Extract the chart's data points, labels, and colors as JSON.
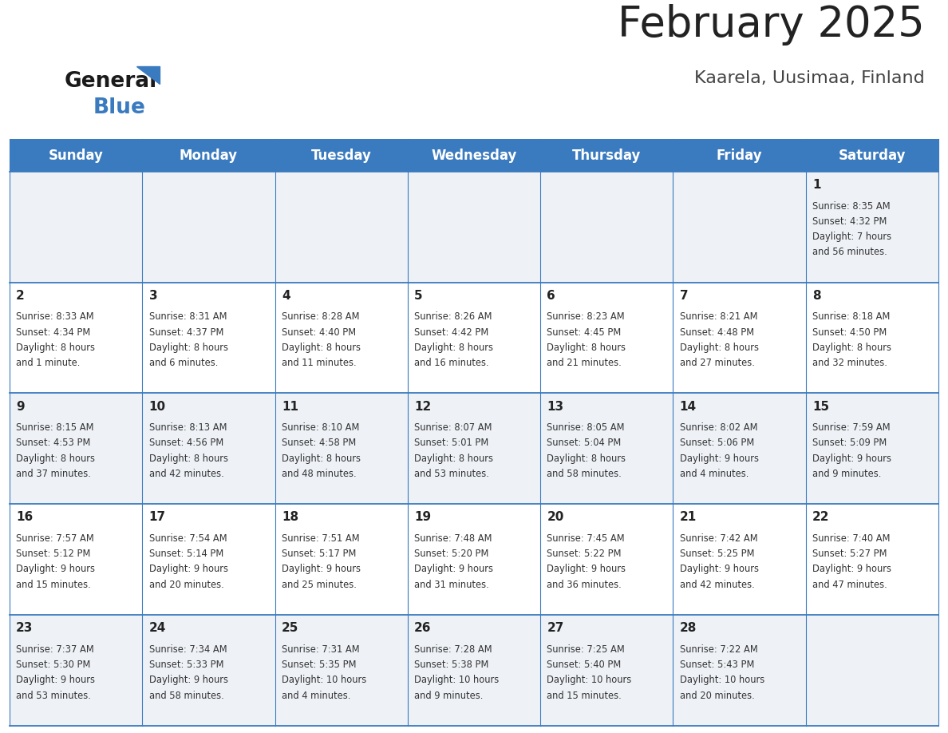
{
  "title": "February 2025",
  "subtitle": "Kaarela, Uusimaa, Finland",
  "header_color": "#3a7abf",
  "header_text_color": "#ffffff",
  "cell_bg_even": "#eef2f7",
  "cell_bg_odd": "#ffffff",
  "border_color": "#3a7abf",
  "day_headers": [
    "Sunday",
    "Monday",
    "Tuesday",
    "Wednesday",
    "Thursday",
    "Friday",
    "Saturday"
  ],
  "title_color": "#222222",
  "subtitle_color": "#444444",
  "day_number_color": "#222222",
  "info_color": "#333333",
  "days": [
    {
      "day": 1,
      "col": 6,
      "row": 0,
      "sunrise": "8:35 AM",
      "sunset": "4:32 PM",
      "daylight_line1": "Daylight: 7 hours",
      "daylight_line2": "and 56 minutes."
    },
    {
      "day": 2,
      "col": 0,
      "row": 1,
      "sunrise": "8:33 AM",
      "sunset": "4:34 PM",
      "daylight_line1": "Daylight: 8 hours",
      "daylight_line2": "and 1 minute."
    },
    {
      "day": 3,
      "col": 1,
      "row": 1,
      "sunrise": "8:31 AM",
      "sunset": "4:37 PM",
      "daylight_line1": "Daylight: 8 hours",
      "daylight_line2": "and 6 minutes."
    },
    {
      "day": 4,
      "col": 2,
      "row": 1,
      "sunrise": "8:28 AM",
      "sunset": "4:40 PM",
      "daylight_line1": "Daylight: 8 hours",
      "daylight_line2": "and 11 minutes."
    },
    {
      "day": 5,
      "col": 3,
      "row": 1,
      "sunrise": "8:26 AM",
      "sunset": "4:42 PM",
      "daylight_line1": "Daylight: 8 hours",
      "daylight_line2": "and 16 minutes."
    },
    {
      "day": 6,
      "col": 4,
      "row": 1,
      "sunrise": "8:23 AM",
      "sunset": "4:45 PM",
      "daylight_line1": "Daylight: 8 hours",
      "daylight_line2": "and 21 minutes."
    },
    {
      "day": 7,
      "col": 5,
      "row": 1,
      "sunrise": "8:21 AM",
      "sunset": "4:48 PM",
      "daylight_line1": "Daylight: 8 hours",
      "daylight_line2": "and 27 minutes."
    },
    {
      "day": 8,
      "col": 6,
      "row": 1,
      "sunrise": "8:18 AM",
      "sunset": "4:50 PM",
      "daylight_line1": "Daylight: 8 hours",
      "daylight_line2": "and 32 minutes."
    },
    {
      "day": 9,
      "col": 0,
      "row": 2,
      "sunrise": "8:15 AM",
      "sunset": "4:53 PM",
      "daylight_line1": "Daylight: 8 hours",
      "daylight_line2": "and 37 minutes."
    },
    {
      "day": 10,
      "col": 1,
      "row": 2,
      "sunrise": "8:13 AM",
      "sunset": "4:56 PM",
      "daylight_line1": "Daylight: 8 hours",
      "daylight_line2": "and 42 minutes."
    },
    {
      "day": 11,
      "col": 2,
      "row": 2,
      "sunrise": "8:10 AM",
      "sunset": "4:58 PM",
      "daylight_line1": "Daylight: 8 hours",
      "daylight_line2": "and 48 minutes."
    },
    {
      "day": 12,
      "col": 3,
      "row": 2,
      "sunrise": "8:07 AM",
      "sunset": "5:01 PM",
      "daylight_line1": "Daylight: 8 hours",
      "daylight_line2": "and 53 minutes."
    },
    {
      "day": 13,
      "col": 4,
      "row": 2,
      "sunrise": "8:05 AM",
      "sunset": "5:04 PM",
      "daylight_line1": "Daylight: 8 hours",
      "daylight_line2": "and 58 minutes."
    },
    {
      "day": 14,
      "col": 5,
      "row": 2,
      "sunrise": "8:02 AM",
      "sunset": "5:06 PM",
      "daylight_line1": "Daylight: 9 hours",
      "daylight_line2": "and 4 minutes."
    },
    {
      "day": 15,
      "col": 6,
      "row": 2,
      "sunrise": "7:59 AM",
      "sunset": "5:09 PM",
      "daylight_line1": "Daylight: 9 hours",
      "daylight_line2": "and 9 minutes."
    },
    {
      "day": 16,
      "col": 0,
      "row": 3,
      "sunrise": "7:57 AM",
      "sunset": "5:12 PM",
      "daylight_line1": "Daylight: 9 hours",
      "daylight_line2": "and 15 minutes."
    },
    {
      "day": 17,
      "col": 1,
      "row": 3,
      "sunrise": "7:54 AM",
      "sunset": "5:14 PM",
      "daylight_line1": "Daylight: 9 hours",
      "daylight_line2": "and 20 minutes."
    },
    {
      "day": 18,
      "col": 2,
      "row": 3,
      "sunrise": "7:51 AM",
      "sunset": "5:17 PM",
      "daylight_line1": "Daylight: 9 hours",
      "daylight_line2": "and 25 minutes."
    },
    {
      "day": 19,
      "col": 3,
      "row": 3,
      "sunrise": "7:48 AM",
      "sunset": "5:20 PM",
      "daylight_line1": "Daylight: 9 hours",
      "daylight_line2": "and 31 minutes."
    },
    {
      "day": 20,
      "col": 4,
      "row": 3,
      "sunrise": "7:45 AM",
      "sunset": "5:22 PM",
      "daylight_line1": "Daylight: 9 hours",
      "daylight_line2": "and 36 minutes."
    },
    {
      "day": 21,
      "col": 5,
      "row": 3,
      "sunrise": "7:42 AM",
      "sunset": "5:25 PM",
      "daylight_line1": "Daylight: 9 hours",
      "daylight_line2": "and 42 minutes."
    },
    {
      "day": 22,
      "col": 6,
      "row": 3,
      "sunrise": "7:40 AM",
      "sunset": "5:27 PM",
      "daylight_line1": "Daylight: 9 hours",
      "daylight_line2": "and 47 minutes."
    },
    {
      "day": 23,
      "col": 0,
      "row": 4,
      "sunrise": "7:37 AM",
      "sunset": "5:30 PM",
      "daylight_line1": "Daylight: 9 hours",
      "daylight_line2": "and 53 minutes."
    },
    {
      "day": 24,
      "col": 1,
      "row": 4,
      "sunrise": "7:34 AM",
      "sunset": "5:33 PM",
      "daylight_line1": "Daylight: 9 hours",
      "daylight_line2": "and 58 minutes."
    },
    {
      "day": 25,
      "col": 2,
      "row": 4,
      "sunrise": "7:31 AM",
      "sunset": "5:35 PM",
      "daylight_line1": "Daylight: 10 hours",
      "daylight_line2": "and 4 minutes."
    },
    {
      "day": 26,
      "col": 3,
      "row": 4,
      "sunrise": "7:28 AM",
      "sunset": "5:38 PM",
      "daylight_line1": "Daylight: 10 hours",
      "daylight_line2": "and 9 minutes."
    },
    {
      "day": 27,
      "col": 4,
      "row": 4,
      "sunrise": "7:25 AM",
      "sunset": "5:40 PM",
      "daylight_line1": "Daylight: 10 hours",
      "daylight_line2": "and 15 minutes."
    },
    {
      "day": 28,
      "col": 5,
      "row": 4,
      "sunrise": "7:22 AM",
      "sunset": "5:43 PM",
      "daylight_line1": "Daylight: 10 hours",
      "daylight_line2": "and 20 minutes."
    }
  ],
  "logo_general_color": "#1a1a1a",
  "logo_blue_color": "#3a7abf",
  "logo_triangle_color": "#3a7abf"
}
